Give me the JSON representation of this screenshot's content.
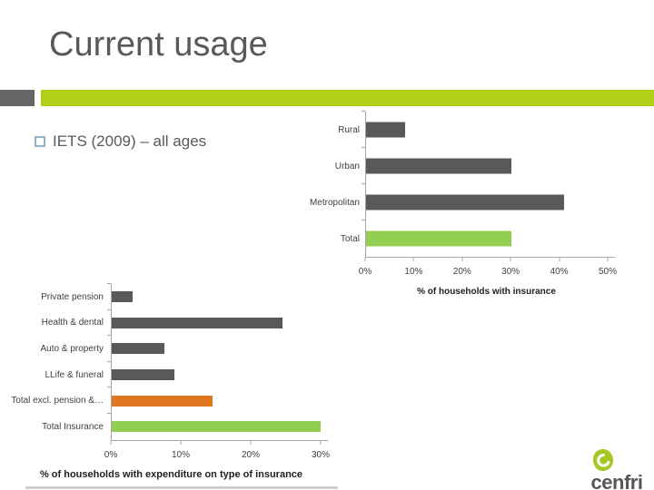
{
  "slide": {
    "title": "Current usage",
    "bullet": "IETS (2009) – all ages"
  },
  "logo": {
    "text": "cenfri"
  },
  "colors": {
    "band_green": "#B2CE16",
    "band_gray": "#666666",
    "bar_gray": "#595959",
    "bar_green": "#92CE52",
    "bar_orange": "#E0761F",
    "axis_gray": "#A6A6A6",
    "text_gray": "#595959",
    "bullet_square_blue": "#8FB4C9",
    "logo_green": "#A6C822"
  },
  "chart_data": [
    {
      "type": "bar",
      "orientation": "horizontal",
      "title": "",
      "xlabel": "% of households with insurance",
      "categories": [
        "Rural",
        "Urban",
        "Metropolitan",
        "Total"
      ],
      "values": [
        8,
        30,
        41,
        30
      ],
      "bar_colors": [
        "#595959",
        "#595959",
        "#595959",
        "#92CE52"
      ],
      "xlim": [
        0,
        50
      ],
      "xticks": [
        "0%",
        "10%",
        "20%",
        "30%",
        "40%",
        "50%"
      ],
      "grid": false,
      "legend": false
    },
    {
      "type": "bar",
      "orientation": "horizontal",
      "title": "",
      "xlabel": "% of households with expenditure on type of insurance",
      "categories": [
        "Private pension",
        "Health & dental",
        "Auto & property",
        "LLife & funeral",
        "Total excl. pension &…",
        "Total Insurance"
      ],
      "values": [
        3,
        24.5,
        7.5,
        9,
        14.5,
        30
      ],
      "bar_colors": [
        "#595959",
        "#595959",
        "#595959",
        "#595959",
        "#E0761F",
        "#92CE52"
      ],
      "xlim": [
        0,
        30
      ],
      "xticks": [
        "0%",
        "10%",
        "20%",
        "30%"
      ],
      "grid": false,
      "legend": false
    }
  ]
}
